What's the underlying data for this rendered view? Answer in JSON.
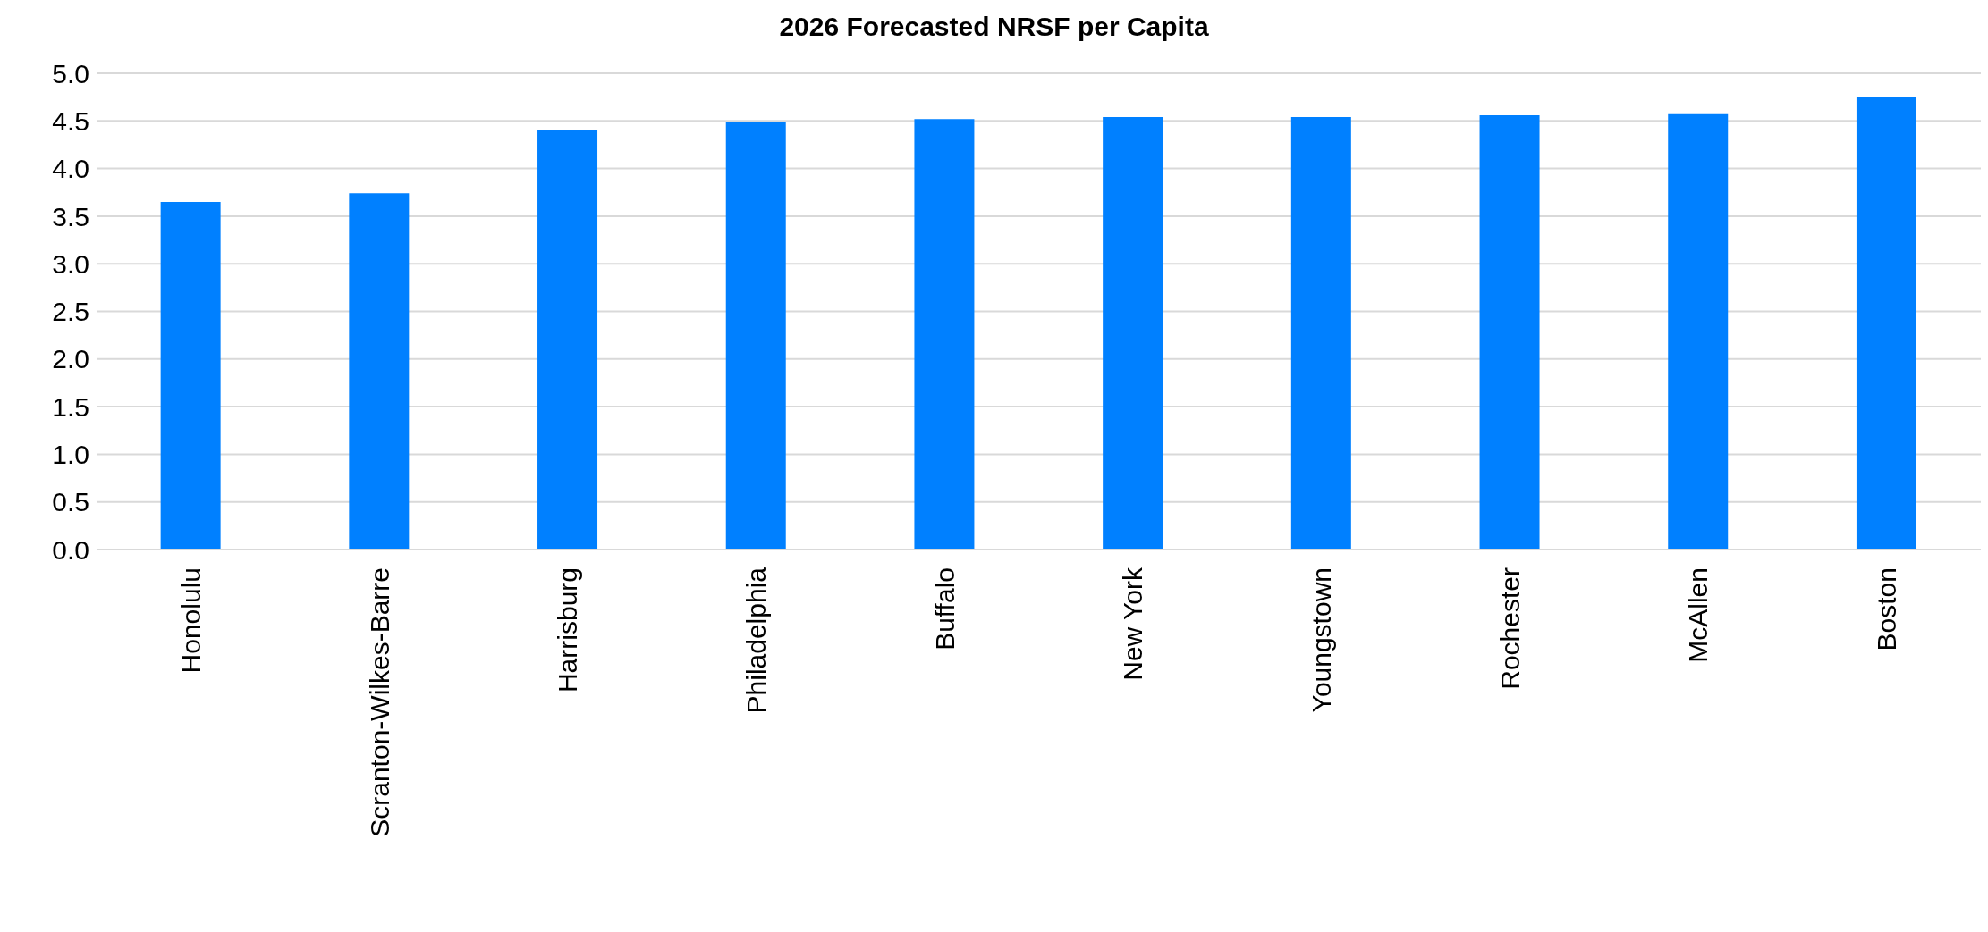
{
  "chart_data": {
    "type": "bar",
    "title": "2026 Forecasted NRSF per Capita",
    "categories": [
      "Honolulu",
      "Scranton-Wilkes-Barre",
      "Harrisburg",
      "Philadelphia",
      "Buffalo",
      "New York",
      "Youngstown",
      "Rochester",
      "McAllen",
      "Boston"
    ],
    "values": [
      3.65,
      3.74,
      4.4,
      4.49,
      4.52,
      4.54,
      4.54,
      4.56,
      4.57,
      4.75
    ],
    "color": "#0080ff",
    "ylim": [
      0,
      5
    ],
    "yticks": [
      {
        "value": 0,
        "label": "0.0"
      },
      {
        "value": 0.5,
        "label": "0.5"
      },
      {
        "value": 1,
        "label": "1.0"
      },
      {
        "value": 1.5,
        "label": "1.5"
      },
      {
        "value": 2,
        "label": "2.0"
      },
      {
        "value": 2.5,
        "label": "2.5"
      },
      {
        "value": 3,
        "label": "3.0"
      },
      {
        "value": 3.5,
        "label": "3.5"
      },
      {
        "value": 4,
        "label": "4.0"
      },
      {
        "value": 4.5,
        "label": "4.5"
      },
      {
        "value": 5,
        "label": "5.0"
      }
    ],
    "grid": "y"
  }
}
